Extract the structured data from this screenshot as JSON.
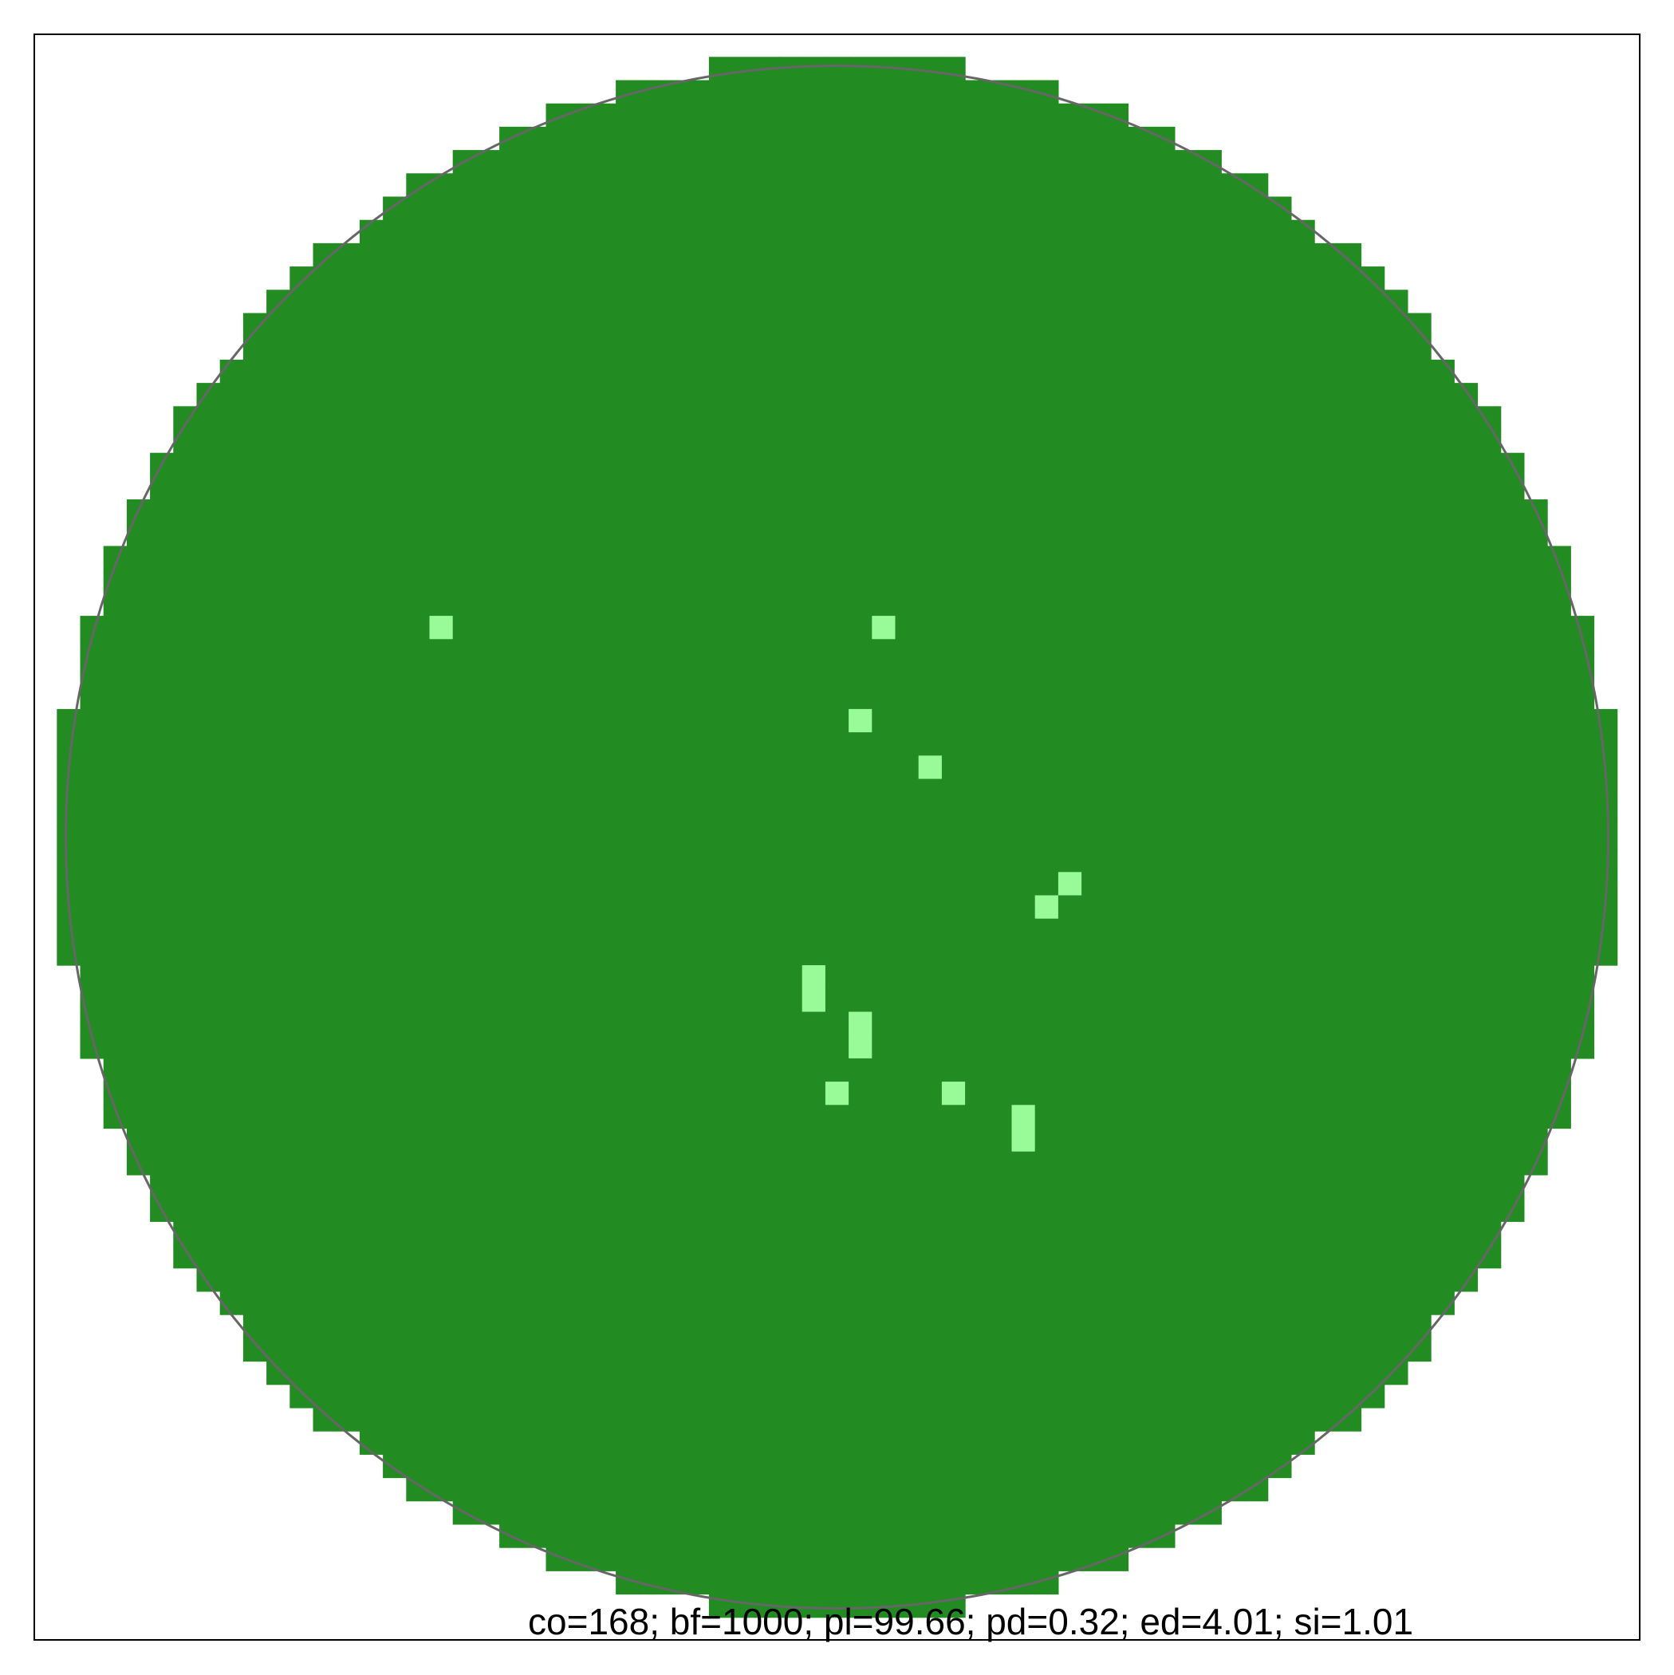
{
  "caption": "co=168; bf=1000; pl=99.66; pd=0.32; ed=4.01; si=1.01",
  "colors": {
    "land": "#228B22",
    "gap": "#98FB98",
    "circle": "#666666",
    "frame": "#000000"
  }
}
